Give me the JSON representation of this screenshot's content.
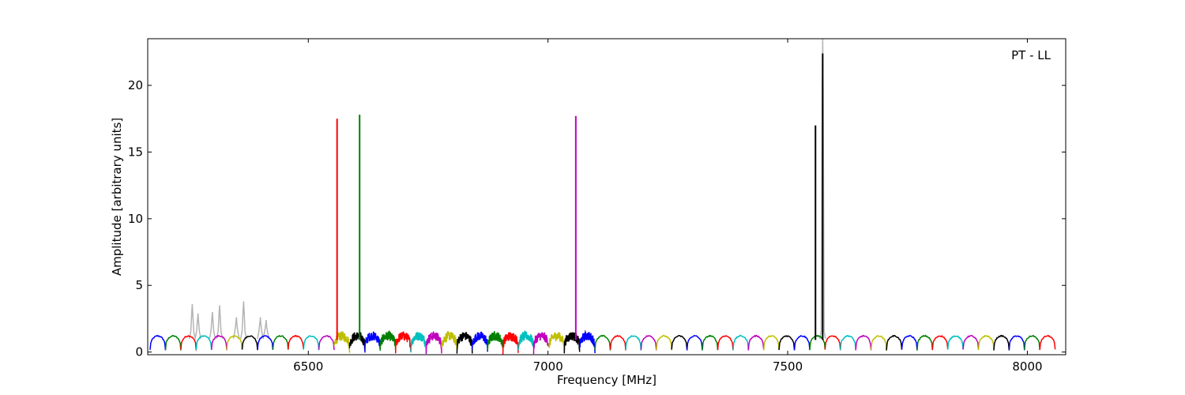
{
  "chart_data": {
    "type": "line",
    "title": "",
    "xlabel": "Frequency [MHz]",
    "ylabel": "Amplitude [arbitrary units]",
    "annotation": "PT - LL",
    "xlim": [
      6165,
      8080
    ],
    "ylim": [
      -0.2,
      23.5
    ],
    "xticks": [
      6500,
      7000,
      7500,
      8000
    ],
    "yticks": [
      0,
      5,
      10,
      15,
      20
    ],
    "grid": false,
    "legend": "none",
    "channel_start": 6170,
    "channel_width": 32,
    "channel_count": 59,
    "channel_colors": [
      "#0000ff",
      "#008000",
      "#ff0000",
      "#00bfbf",
      "#bf00bf",
      "#bfbf00",
      "#000000"
    ],
    "channel_colors_note_free": true,
    "noisy_channels_x": [
      6550,
      7090
    ],
    "spikes": [
      {
        "x": 6560,
        "y": 17.5,
        "color": "#ff0000"
      },
      {
        "x": 6607,
        "y": 17.8,
        "color": "#008000"
      },
      {
        "x": 7058,
        "y": 17.7,
        "color": "#bf00bf"
      },
      {
        "x": 7558,
        "y": 17.0,
        "color": "#000000"
      },
      {
        "x": 7573,
        "y": 22.4,
        "color": "#000000"
      }
    ],
    "gray_series": {
      "name": "",
      "color": "#b4b4b4",
      "peaks": [
        {
          "x": 6258,
          "y": 3.6
        },
        {
          "x": 6270,
          "y": 2.9
        },
        {
          "x": 6300,
          "y": 3.0
        },
        {
          "x": 6315,
          "y": 3.5
        },
        {
          "x": 6350,
          "y": 2.6
        },
        {
          "x": 6365,
          "y": 3.8
        },
        {
          "x": 6400,
          "y": 2.6
        },
        {
          "x": 6412,
          "y": 2.4
        },
        {
          "x": 7573,
          "y": 23.5
        }
      ]
    }
  }
}
